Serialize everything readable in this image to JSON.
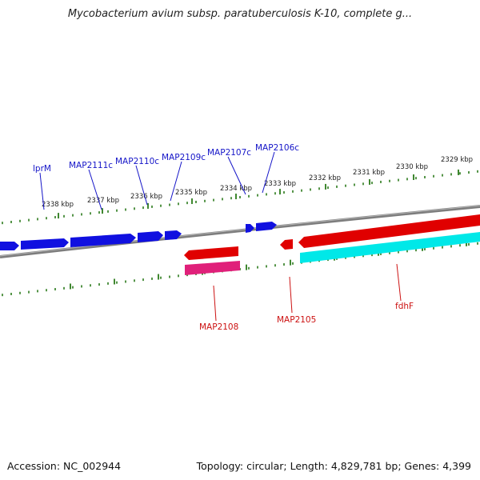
{
  "title": "Mycobacterium avium subsp. paratuberculosis K-10, complete g...",
  "footer": {
    "accession": "Accession: NC_002944",
    "summary": "Topology: circular; Length: 4,829,781 bp; Genes: 4,399"
  },
  "colors": {
    "forward_gene": "#1010e0",
    "reverse_gene": "#e00000",
    "rna_gene": "#e0207a",
    "cds_feature": "#00e8e8",
    "backbone": "#888888",
    "tick": "#2a7a1a",
    "label_forward": "#1515c8",
    "label_reverse": "#cc1111"
  },
  "scale_labels": [
    "2338 kbp",
    "2337 kbp",
    "2336 kbp",
    "2335 kbp",
    "2334 kbp",
    "2333 kbp",
    "2332 kbp",
    "2331 kbp",
    "2330 kbp",
    "2329 kbp"
  ],
  "forward_gene_labels": [
    "lprM",
    "MAP2111c",
    "MAP2110c",
    "MAP2109c",
    "MAP2107c",
    "MAP2106c"
  ],
  "reverse_gene_labels": [
    "MAP2108",
    "MAP2105",
    "fdhF"
  ]
}
